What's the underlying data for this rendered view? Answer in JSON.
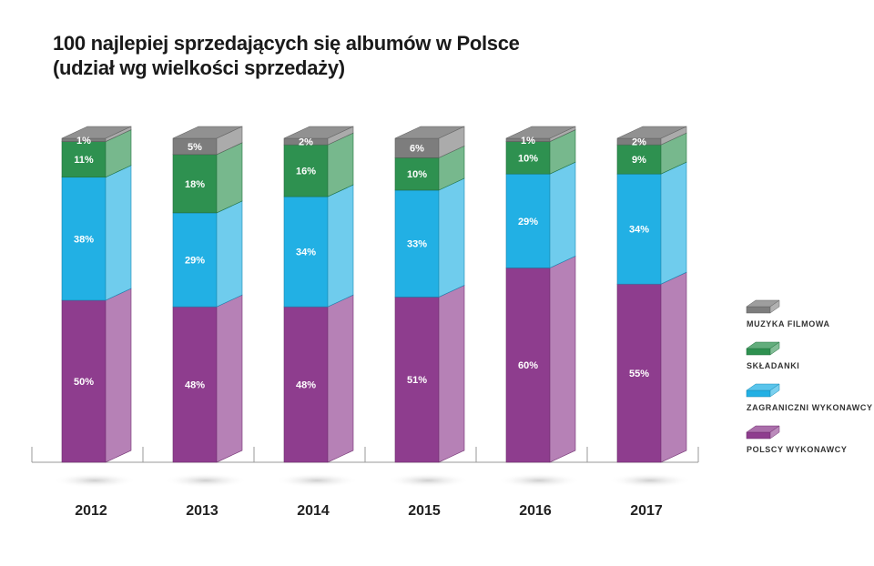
{
  "title": {
    "line1": "100 najlepiej sprzedających się albumów w Polsce",
    "line2": "(udział wg wielkości sprzedaży)"
  },
  "chart_data": {
    "type": "bar",
    "stacked": true,
    "title": "100 najlepiej sprzedających się albumów w Polsce (udział wg wielkości sprzedaży)",
    "categories": [
      "2012",
      "2013",
      "2014",
      "2015",
      "2016",
      "2017"
    ],
    "series": [
      {
        "name": "POLSCY WYKONAWCY",
        "values": [
          50,
          48,
          48,
          51,
          60,
          55
        ],
        "color": "#8e3d8e"
      },
      {
        "name": "ZAGRANICZNI WYKONAWCY",
        "values": [
          38,
          29,
          34,
          33,
          29,
          34
        ],
        "color": "#22b0e4"
      },
      {
        "name": "SKŁADANKI",
        "values": [
          11,
          18,
          16,
          10,
          10,
          9
        ],
        "color": "#2e9150"
      },
      {
        "name": "MUZYKA FILMOWA",
        "values": [
          1,
          5,
          2,
          6,
          1,
          2
        ],
        "color": "#7d7d7d"
      }
    ],
    "unit": "%",
    "ylim": [
      0,
      100
    ],
    "legend_position": "right"
  }
}
